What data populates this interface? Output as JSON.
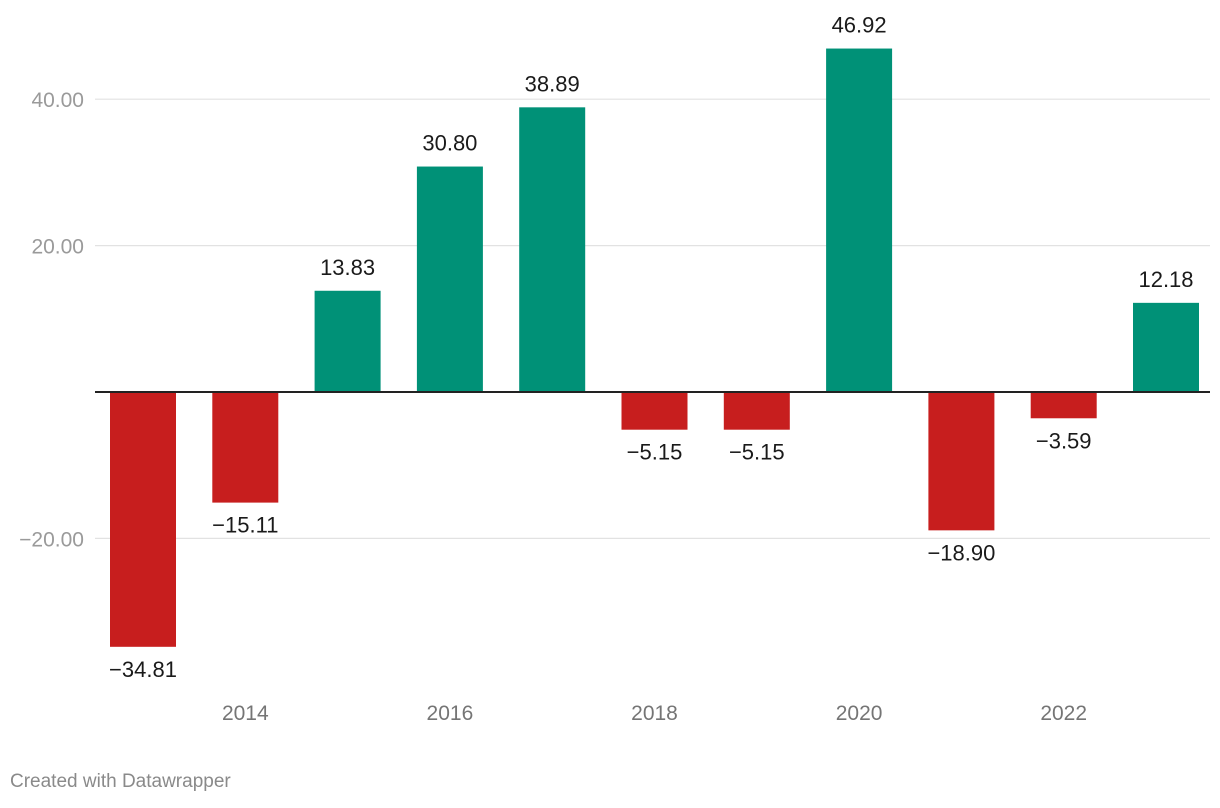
{
  "chart_data": {
    "type": "bar",
    "x": [
      2013,
      2014,
      2015,
      2016,
      2017,
      2018,
      2019,
      2020,
      2021,
      2022,
      2023
    ],
    "values": [
      -34.81,
      -15.11,
      13.83,
      30.8,
      38.89,
      -5.15,
      -5.15,
      46.92,
      -18.9,
      -3.59,
      12.18
    ],
    "value_labels": [
      "−34.81",
      "−15.11",
      "13.83",
      "30.80",
      "38.89",
      "−5.15",
      "−5.15",
      "46.92",
      "−18.90",
      "−3.59",
      "12.18"
    ],
    "x_ticks": [
      2014,
      2016,
      2018,
      2020,
      2022
    ],
    "y_ticks": [
      -20,
      20,
      40
    ],
    "y_tick_labels": [
      "−20.00",
      "20.00",
      "40.00"
    ],
    "ylim": [
      -40,
      50
    ],
    "grid": true,
    "zero_line": true,
    "colors": {
      "positive": "#009177",
      "negative": "#c71e1e",
      "grid": "#e2e2e2",
      "axis": "#222222"
    }
  },
  "footer": {
    "credit": "Created with Datawrapper"
  }
}
